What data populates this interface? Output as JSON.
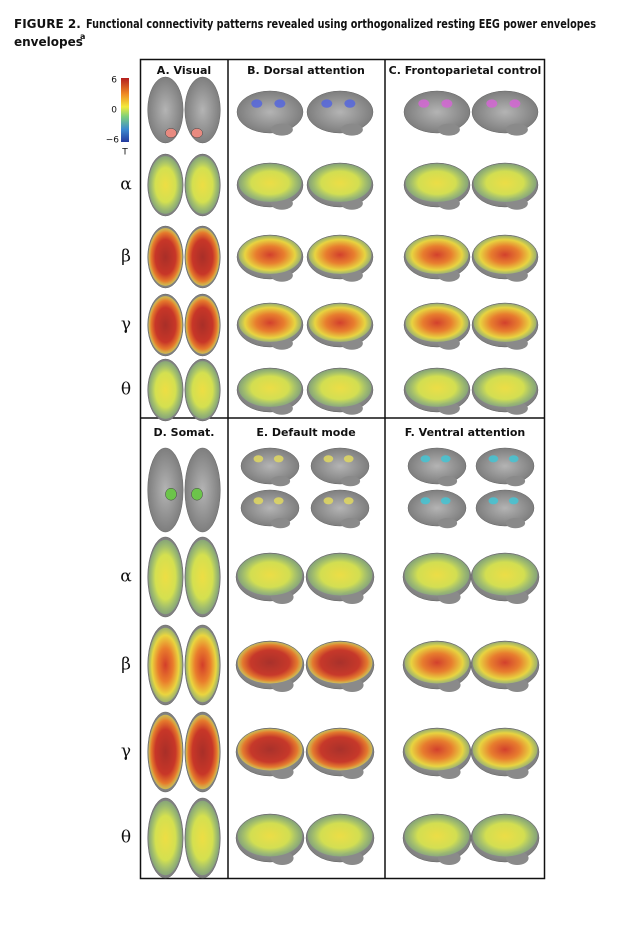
{
  "figure_label": "FIGURE 2.",
  "title": "Functional connectivity patterns revealed using orthogonalized resting EEG power envelopes",
  "title_mark": "a",
  "colorbar": {
    "top": "6",
    "middle": "0",
    "bottom": "−6",
    "unit": "T"
  },
  "band_labels": [
    "α",
    "β",
    "γ",
    "θ"
  ],
  "panels": [
    "A. Visual",
    "B. Dorsal attention",
    "C. Frontoparietal control",
    "D. Somat.",
    "E. Default mode",
    "F. Ventral attention"
  ]
}
